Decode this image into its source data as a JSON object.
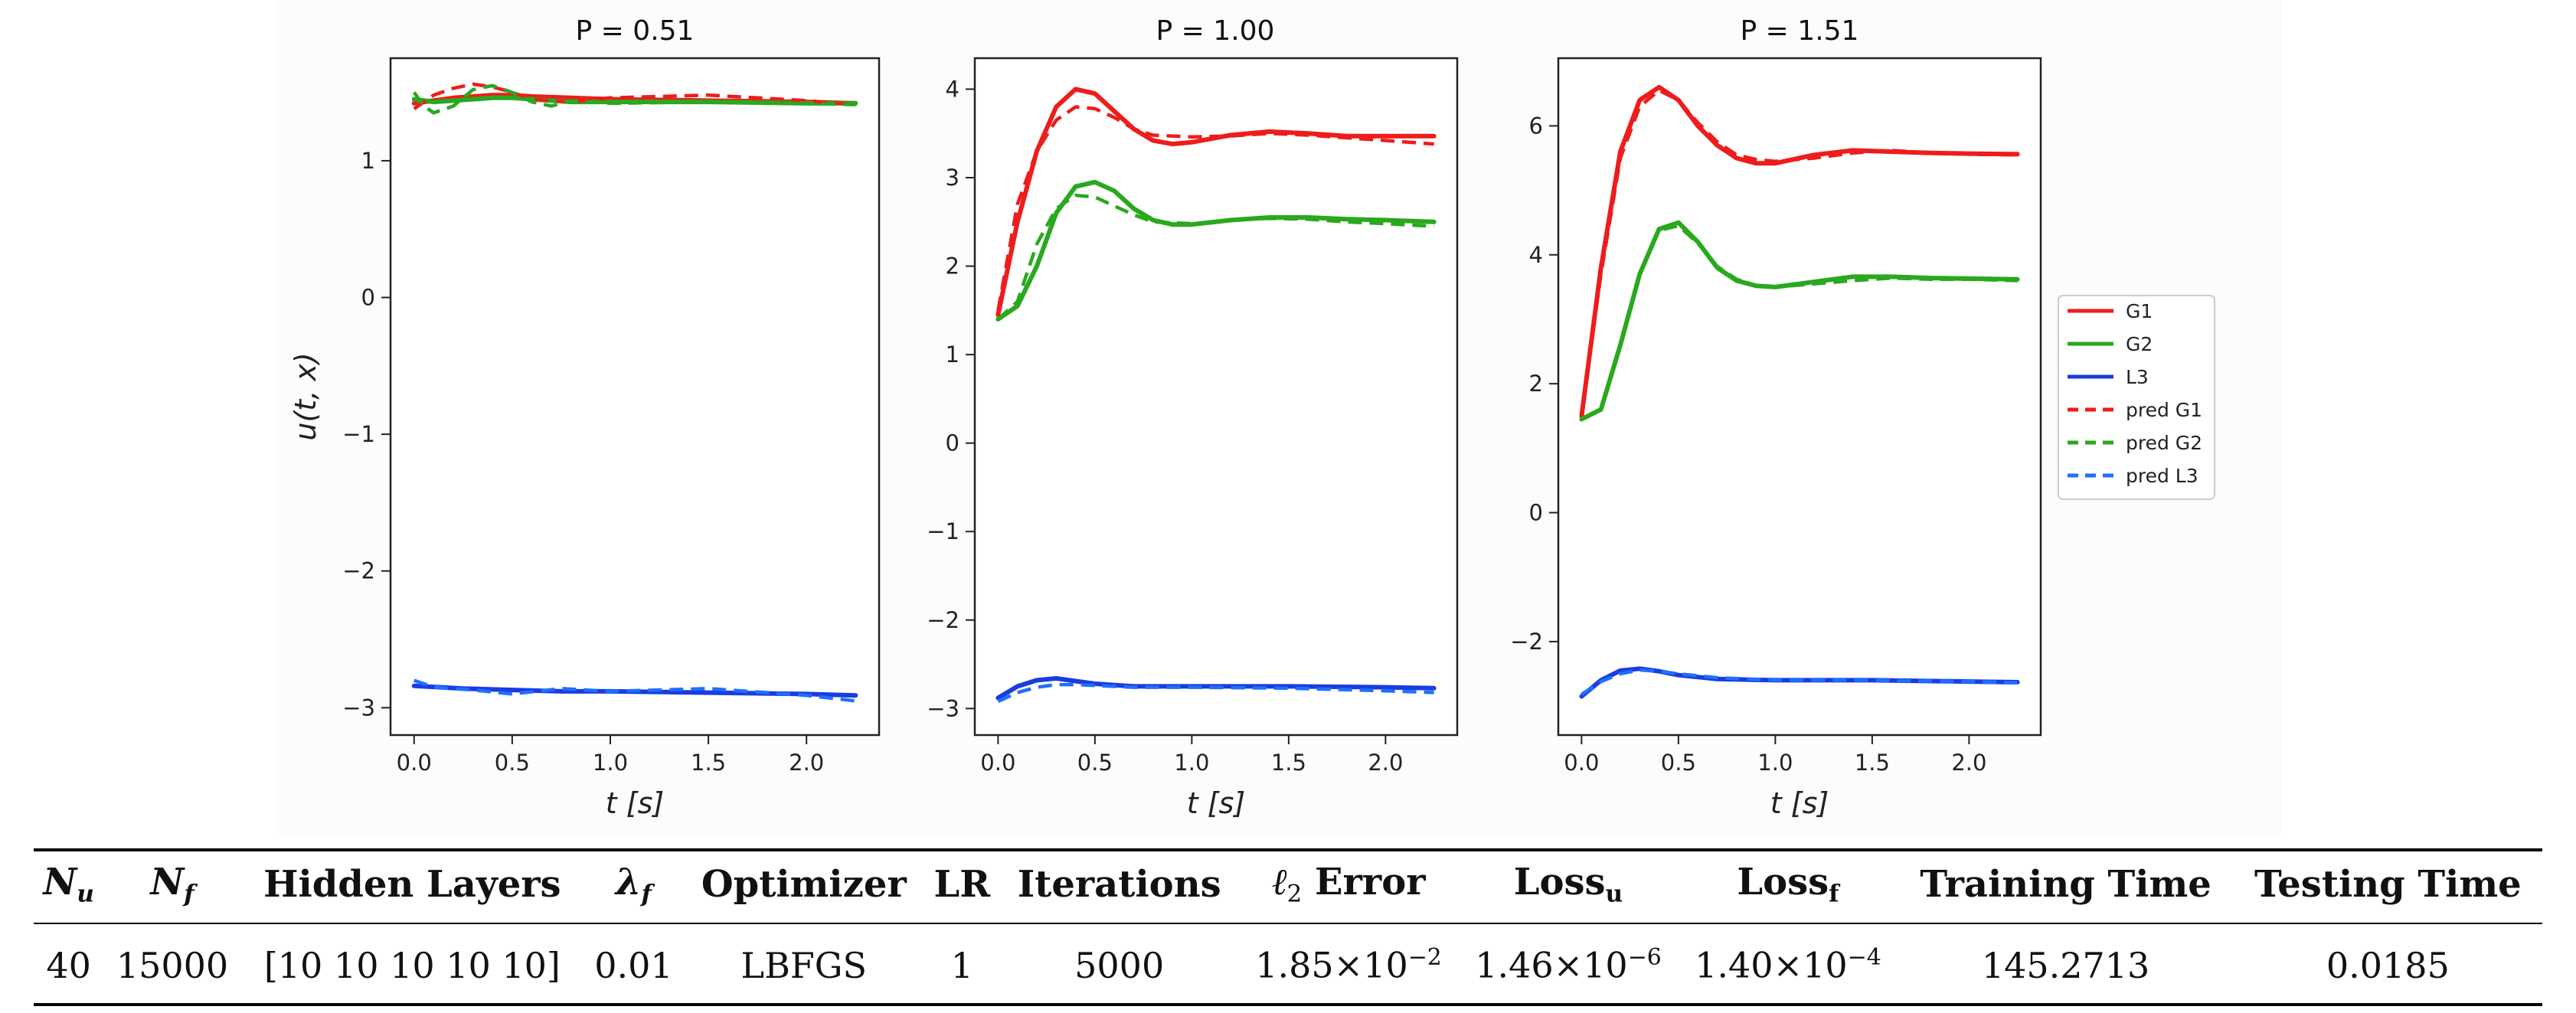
{
  "chart_data": [
    {
      "type": "line",
      "title": "P = 0.51",
      "xlabel": "t [s]",
      "ylabel": "u(t, x)",
      "xlim": [
        -0.12,
        2.37
      ],
      "ylim": [
        -3.2,
        1.75
      ],
      "xticks": [
        0.0,
        0.5,
        1.0,
        1.5,
        2.0
      ],
      "xtick_labels": [
        "0.0",
        "0.5",
        "1.0",
        "1.5",
        "2.0"
      ],
      "yticks": [
        -3,
        -2,
        -1,
        0,
        1
      ],
      "ytick_labels": [
        "−3",
        "−2",
        "−1",
        "0",
        "1"
      ],
      "series": [
        {
          "name": "G1",
          "color": "#ee1c1c",
          "dashed": false,
          "x": [
            0,
            0.1,
            0.2,
            0.3,
            0.4,
            0.5,
            0.6,
            0.8,
            1.0,
            1.5,
            2.0,
            2.25
          ],
          "y": [
            1.42,
            1.44,
            1.46,
            1.47,
            1.48,
            1.48,
            1.47,
            1.46,
            1.45,
            1.44,
            1.43,
            1.42
          ]
        },
        {
          "name": "G2",
          "color": "#2aa81e",
          "dashed": false,
          "x": [
            0,
            0.1,
            0.2,
            0.3,
            0.4,
            0.5,
            0.6,
            0.8,
            1.0,
            1.5,
            2.0,
            2.25
          ],
          "y": [
            1.45,
            1.43,
            1.44,
            1.45,
            1.46,
            1.46,
            1.45,
            1.43,
            1.43,
            1.43,
            1.42,
            1.42
          ]
        },
        {
          "name": "L3",
          "color": "#1a3ce0",
          "dashed": false,
          "x": [
            0,
            0.25,
            0.5,
            0.75,
            1.0,
            1.5,
            2.0,
            2.25
          ],
          "y": [
            -2.84,
            -2.86,
            -2.87,
            -2.88,
            -2.88,
            -2.89,
            -2.9,
            -2.91
          ]
        },
        {
          "name": "pred G1",
          "color": "#ee1c1c",
          "dashed": true,
          "x": [
            0,
            0.1,
            0.2,
            0.3,
            0.4,
            0.5,
            0.6,
            0.8,
            1.0,
            1.5,
            2.0,
            2.25
          ],
          "y": [
            1.38,
            1.48,
            1.53,
            1.56,
            1.54,
            1.5,
            1.45,
            1.43,
            1.46,
            1.48,
            1.44,
            1.41
          ]
        },
        {
          "name": "pred G2",
          "color": "#2aa81e",
          "dashed": true,
          "x": [
            0,
            0.05,
            0.1,
            0.2,
            0.3,
            0.4,
            0.5,
            0.6,
            0.7,
            0.8,
            1.0,
            1.5,
            2.0,
            2.25
          ],
          "y": [
            1.5,
            1.4,
            1.35,
            1.4,
            1.52,
            1.55,
            1.5,
            1.43,
            1.4,
            1.44,
            1.42,
            1.43,
            1.42,
            1.41
          ]
        },
        {
          "name": "pred L3",
          "color": "#1f6fff",
          "dashed": true,
          "x": [
            0,
            0.1,
            0.3,
            0.5,
            0.75,
            1.0,
            1.5,
            2.0,
            2.25
          ],
          "y": [
            -2.8,
            -2.85,
            -2.87,
            -2.9,
            -2.86,
            -2.88,
            -2.86,
            -2.91,
            -2.95
          ]
        }
      ]
    },
    {
      "type": "line",
      "title": "P = 1.00",
      "xlabel": "t [s]",
      "ylabel": "",
      "xlim": [
        -0.12,
        2.37
      ],
      "ylim": [
        -3.3,
        4.35
      ],
      "xticks": [
        0.0,
        0.5,
        1.0,
        1.5,
        2.0
      ],
      "xtick_labels": [
        "0.0",
        "0.5",
        "1.0",
        "1.5",
        "2.0"
      ],
      "yticks": [
        -3,
        -2,
        -1,
        0,
        1,
        2,
        3,
        4
      ],
      "ytick_labels": [
        "−3",
        "−2",
        "−1",
        "0",
        "1",
        "2",
        "3",
        "4"
      ],
      "series": [
        {
          "name": "G1",
          "color": "#ee1c1c",
          "dashed": false,
          "x": [
            0,
            0.1,
            0.2,
            0.3,
            0.4,
            0.5,
            0.6,
            0.7,
            0.8,
            0.9,
            1.0,
            1.2,
            1.4,
            1.6,
            1.8,
            2.0,
            2.25
          ],
          "y": [
            1.45,
            2.5,
            3.3,
            3.8,
            4.0,
            3.95,
            3.75,
            3.55,
            3.42,
            3.38,
            3.4,
            3.48,
            3.52,
            3.5,
            3.47,
            3.47,
            3.47
          ]
        },
        {
          "name": "G2",
          "color": "#2aa81e",
          "dashed": false,
          "x": [
            0,
            0.1,
            0.2,
            0.3,
            0.4,
            0.5,
            0.6,
            0.7,
            0.8,
            0.9,
            1.0,
            1.2,
            1.4,
            1.6,
            1.8,
            2.0,
            2.25
          ],
          "y": [
            1.4,
            1.55,
            2.0,
            2.6,
            2.9,
            2.95,
            2.85,
            2.65,
            2.52,
            2.47,
            2.47,
            2.52,
            2.55,
            2.55,
            2.53,
            2.52,
            2.5
          ]
        },
        {
          "name": "L3",
          "color": "#1a3ce0",
          "dashed": false,
          "x": [
            0,
            0.1,
            0.2,
            0.3,
            0.4,
            0.5,
            0.7,
            1.0,
            1.5,
            2.0,
            2.25
          ],
          "y": [
            -2.88,
            -2.75,
            -2.68,
            -2.66,
            -2.69,
            -2.72,
            -2.75,
            -2.75,
            -2.75,
            -2.76,
            -2.77
          ]
        },
        {
          "name": "pred G1",
          "color": "#ee1c1c",
          "dashed": true,
          "x": [
            0,
            0.1,
            0.2,
            0.3,
            0.4,
            0.5,
            0.6,
            0.7,
            0.8,
            1.0,
            1.2,
            1.4,
            1.6,
            1.8,
            2.0,
            2.25
          ],
          "y": [
            1.5,
            2.7,
            3.3,
            3.65,
            3.8,
            3.78,
            3.68,
            3.55,
            3.48,
            3.46,
            3.47,
            3.5,
            3.48,
            3.45,
            3.42,
            3.38
          ]
        },
        {
          "name": "pred G2",
          "color": "#2aa81e",
          "dashed": true,
          "x": [
            0,
            0.1,
            0.2,
            0.3,
            0.4,
            0.5,
            0.6,
            0.7,
            0.8,
            1.0,
            1.2,
            1.4,
            1.6,
            1.8,
            2.0,
            2.25
          ],
          "y": [
            1.4,
            1.6,
            2.25,
            2.65,
            2.8,
            2.78,
            2.68,
            2.58,
            2.5,
            2.48,
            2.52,
            2.54,
            2.53,
            2.5,
            2.48,
            2.45
          ]
        },
        {
          "name": "pred L3",
          "color": "#1f6fff",
          "dashed": true,
          "x": [
            0,
            0.1,
            0.2,
            0.3,
            0.4,
            0.5,
            0.7,
            1.0,
            1.5,
            2.0,
            2.25
          ],
          "y": [
            -2.92,
            -2.82,
            -2.76,
            -2.73,
            -2.73,
            -2.74,
            -2.76,
            -2.76,
            -2.77,
            -2.8,
            -2.82
          ]
        }
      ]
    },
    {
      "type": "line",
      "title": "P = 1.51",
      "xlabel": "t [s]",
      "ylabel": "",
      "xlim": [
        -0.12,
        2.37
      ],
      "ylim": [
        -3.45,
        7.05
      ],
      "xticks": [
        0.0,
        0.5,
        1.0,
        1.5,
        2.0
      ],
      "xtick_labels": [
        "0.0",
        "0.5",
        "1.0",
        "1.5",
        "2.0"
      ],
      "yticks": [
        -2,
        0,
        2,
        4,
        6
      ],
      "ytick_labels": [
        "−2",
        "0",
        "2",
        "4",
        "6"
      ],
      "series": [
        {
          "name": "G1",
          "color": "#ee1c1c",
          "dashed": false,
          "x": [
            0,
            0.1,
            0.2,
            0.3,
            0.4,
            0.5,
            0.6,
            0.7,
            0.8,
            0.9,
            1.0,
            1.2,
            1.4,
            1.6,
            1.8,
            2.0,
            2.25
          ],
          "y": [
            1.5,
            3.8,
            5.6,
            6.4,
            6.6,
            6.4,
            6.0,
            5.7,
            5.5,
            5.42,
            5.42,
            5.55,
            5.62,
            5.6,
            5.58,
            5.57,
            5.56
          ]
        },
        {
          "name": "G2",
          "color": "#2aa81e",
          "dashed": false,
          "x": [
            0,
            0.1,
            0.2,
            0.3,
            0.4,
            0.5,
            0.6,
            0.7,
            0.8,
            0.9,
            1.0,
            1.2,
            1.4,
            1.6,
            1.8,
            2.0,
            2.25
          ],
          "y": [
            1.45,
            1.6,
            2.6,
            3.7,
            4.4,
            4.5,
            4.2,
            3.8,
            3.6,
            3.52,
            3.5,
            3.58,
            3.66,
            3.66,
            3.64,
            3.63,
            3.62
          ]
        },
        {
          "name": "L3",
          "color": "#1a3ce0",
          "dashed": false,
          "x": [
            0,
            0.1,
            0.2,
            0.3,
            0.4,
            0.5,
            0.7,
            1.0,
            1.5,
            2.0,
            2.25
          ],
          "y": [
            -2.85,
            -2.6,
            -2.45,
            -2.42,
            -2.46,
            -2.52,
            -2.58,
            -2.6,
            -2.6,
            -2.62,
            -2.63
          ]
        },
        {
          "name": "pred G1",
          "color": "#ee1c1c",
          "dashed": true,
          "x": [
            0,
            0.1,
            0.2,
            0.3,
            0.4,
            0.5,
            0.6,
            0.7,
            0.8,
            0.9,
            1.0,
            1.2,
            1.4,
            1.6,
            1.8,
            2.0,
            2.25
          ],
          "y": [
            1.5,
            3.7,
            5.5,
            6.3,
            6.55,
            6.4,
            6.05,
            5.75,
            5.55,
            5.48,
            5.45,
            5.5,
            5.58,
            5.62,
            5.58,
            5.56,
            5.55
          ]
        },
        {
          "name": "pred G2",
          "color": "#2aa81e",
          "dashed": true,
          "x": [
            0,
            0.1,
            0.2,
            0.3,
            0.4,
            0.5,
            0.6,
            0.7,
            0.8,
            0.9,
            1.0,
            1.2,
            1.4,
            1.6,
            1.8,
            2.0,
            2.25
          ],
          "y": [
            1.45,
            1.62,
            2.6,
            3.7,
            4.38,
            4.45,
            4.18,
            3.82,
            3.62,
            3.52,
            3.5,
            3.55,
            3.6,
            3.64,
            3.62,
            3.62,
            3.6
          ]
        },
        {
          "name": "pred L3",
          "color": "#1f6fff",
          "dashed": true,
          "x": [
            0,
            0.1,
            0.2,
            0.3,
            0.4,
            0.5,
            0.7,
            1.0,
            1.5,
            2.0,
            2.25
          ],
          "y": [
            -2.82,
            -2.62,
            -2.5,
            -2.44,
            -2.46,
            -2.5,
            -2.56,
            -2.6,
            -2.6,
            -2.62,
            -2.64
          ]
        }
      ]
    }
  ],
  "legend": {
    "entries": [
      {
        "label": "G1",
        "color": "#ee1c1c",
        "dashed": false
      },
      {
        "label": "G2",
        "color": "#2aa81e",
        "dashed": false
      },
      {
        "label": "L3",
        "color": "#1a3ce0",
        "dashed": false
      },
      {
        "label": "pred G1",
        "color": "#ee1c1c",
        "dashed": true
      },
      {
        "label": "pred G2",
        "color": "#2aa81e",
        "dashed": true
      },
      {
        "label": "pred L3",
        "color": "#1f6fff",
        "dashed": true
      }
    ]
  },
  "table": {
    "headers": {
      "nu_base": "N",
      "nu_sub": "u",
      "nf_base": "N",
      "nf_sub": "f",
      "hidden_layers": "Hidden Layers",
      "lambda_base": "λ",
      "lambda_sub": "f",
      "optimizer": "Optimizer",
      "lr": "LR",
      "iterations": "Iterations",
      "l2_base": "ℓ",
      "l2_sub": "2",
      "l2_rest": " Error",
      "lossu_base": "Loss",
      "lossu_sub": "u",
      "lossf_base": "Loss",
      "lossf_sub": "f",
      "training_time": "Training Time",
      "testing_time": "Testing Time"
    },
    "row": {
      "nu": "40",
      "nf": "15000",
      "hidden_layers": "[10 10 10 10 10]",
      "lambda": "0.01",
      "optimizer": "LBFGS",
      "lr": "1",
      "iterations": "5000",
      "l2_mantissa": "1.85×10",
      "l2_exp": "−2",
      "lossu_mantissa": "1.46×10",
      "lossu_exp": "−6",
      "lossf_mantissa": "1.40×10",
      "lossf_exp": "−4",
      "training_time": "145.2713",
      "testing_time": "0.0185"
    }
  }
}
